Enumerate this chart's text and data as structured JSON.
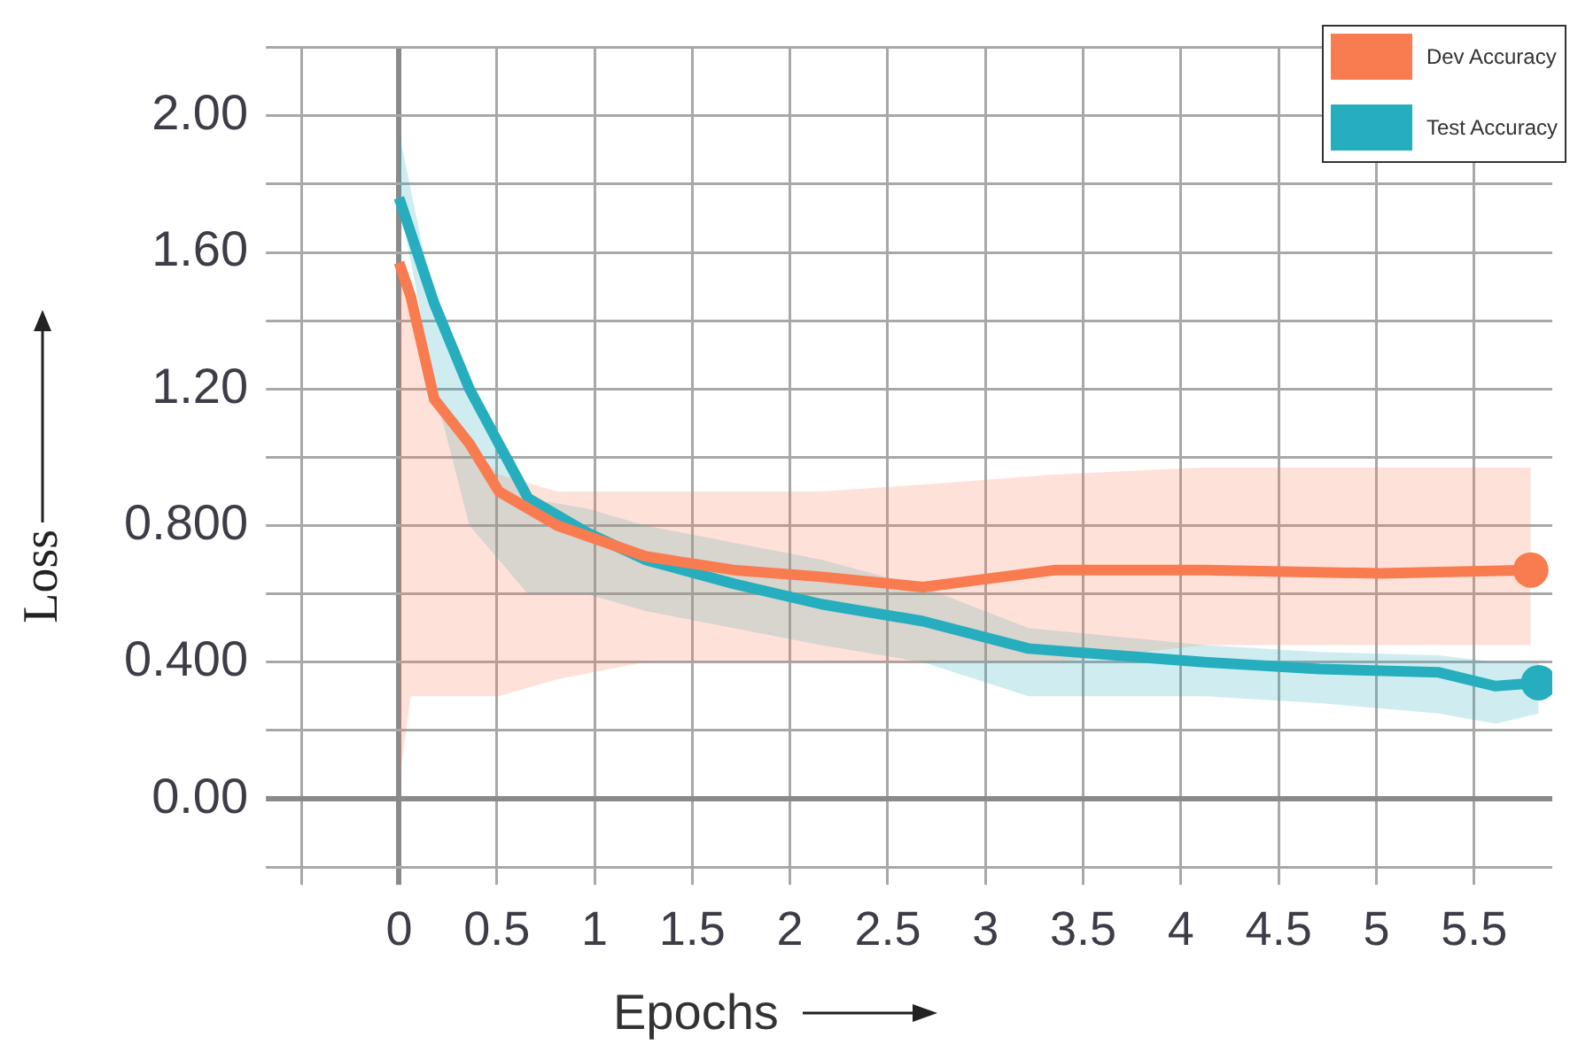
{
  "chart_data": {
    "type": "line",
    "xlabel": "Epochs",
    "ylabel": "Loss",
    "xlim": [
      -0.5,
      5.9
    ],
    "ylim": [
      -0.2,
      2.2
    ],
    "xticks": [
      {
        "value": -0.5,
        "label": null
      },
      0,
      0.5,
      1,
      1.5,
      2,
      2.5,
      3,
      3.5,
      4,
      4.5,
      5,
      5.5
    ],
    "yticks": [
      {
        "value": -0.2,
        "label": null
      },
      {
        "value": 0,
        "label": "0.00"
      },
      {
        "value": 0.2,
        "label": null
      },
      {
        "value": 0.4,
        "label": "0.400"
      },
      {
        "value": 0.6,
        "label": null
      },
      {
        "value": 0.8,
        "label": "0.800"
      },
      {
        "value": 1.0,
        "label": null
      },
      {
        "value": 1.2,
        "label": "1.20"
      },
      {
        "value": 1.4,
        "label": null
      },
      {
        "value": 1.6,
        "label": "1.60"
      },
      {
        "value": 1.8,
        "label": null
      },
      {
        "value": 2.0,
        "label": "2.00"
      },
      {
        "value": 2.2,
        "label": null
      }
    ],
    "grid": true,
    "legend": "top right",
    "line_style": "solid",
    "series": [
      {
        "name": "Dev Accuracy",
        "color": "#f97b50",
        "x": [
          0,
          0.06,
          0.18,
          0.36,
          0.51,
          0.81,
          1.26,
          1.71,
          2.16,
          2.68,
          3.36,
          4.12,
          5.02,
          5.79
        ],
        "values": [
          1.57,
          1.47,
          1.17,
          1.04,
          0.9,
          0.8,
          0.71,
          0.67,
          0.65,
          0.62,
          0.67,
          0.67,
          0.66,
          0.67
        ],
        "lower": [
          0.05,
          0.3,
          0.3,
          0.3,
          0.3,
          0.35,
          0.4,
          0.4,
          0.4,
          0.4,
          0.4,
          0.45,
          0.45,
          0.45
        ],
        "upper": [
          1.57,
          1.47,
          1.17,
          1.04,
          0.95,
          0.9,
          0.9,
          0.9,
          0.9,
          0.92,
          0.95,
          0.97,
          0.97,
          0.97
        ]
      },
      {
        "name": "Test Accuracy",
        "color": "#26aebf",
        "x": [
          0,
          0.18,
          0.36,
          0.51,
          0.66,
          0.96,
          1.26,
          1.71,
          2.16,
          2.68,
          3.22,
          4.12,
          4.71,
          5.32,
          5.61,
          5.83
        ],
        "values": [
          1.76,
          1.45,
          1.2,
          1.04,
          0.88,
          0.78,
          0.7,
          0.63,
          0.57,
          0.52,
          0.44,
          0.4,
          0.38,
          0.37,
          0.33,
          0.34
        ],
        "lower": [
          1.76,
          1.2,
          0.8,
          0.7,
          0.6,
          0.6,
          0.55,
          0.5,
          0.45,
          0.4,
          0.3,
          0.3,
          0.28,
          0.25,
          0.22,
          0.25
        ],
        "upper": [
          1.95,
          1.45,
          1.2,
          1.04,
          0.88,
          0.85,
          0.8,
          0.75,
          0.7,
          0.62,
          0.5,
          0.45,
          0.43,
          0.42,
          0.4,
          0.4
        ]
      }
    ]
  }
}
